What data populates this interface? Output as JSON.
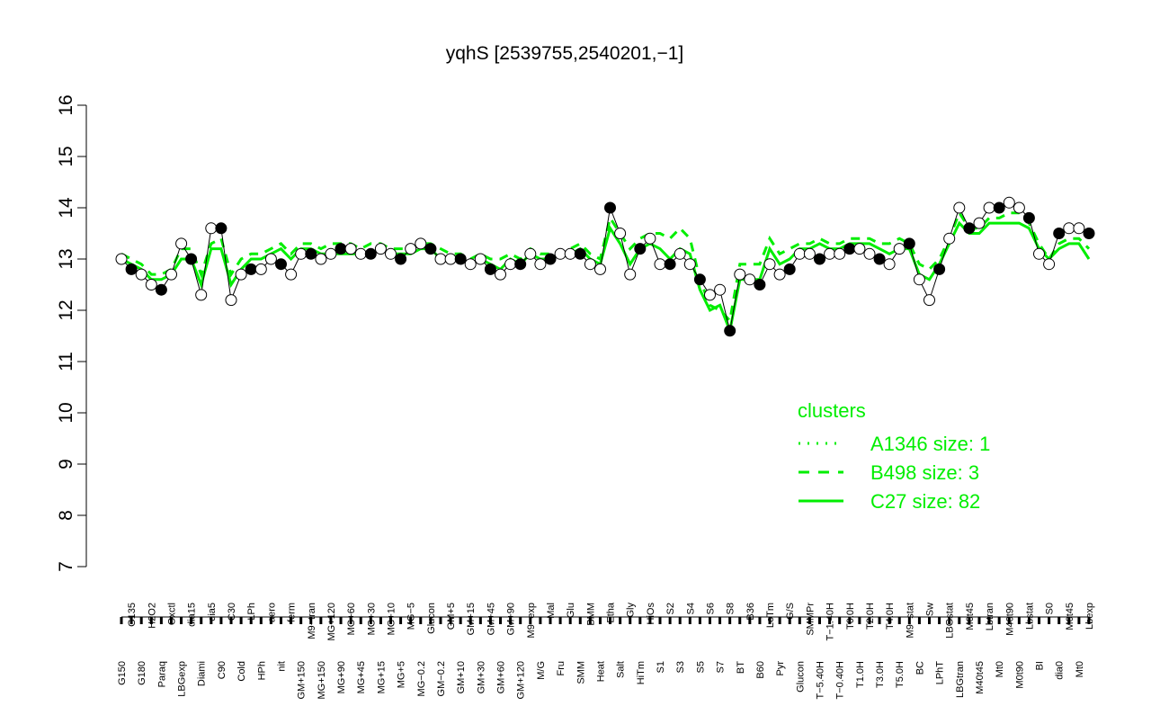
{
  "chart_data": {
    "type": "scatter",
    "title": "yqhS [2539755,2540201,−1]",
    "xlabel": "",
    "ylabel": "",
    "ylim": [
      7,
      16
    ],
    "y_ticks": [
      "7",
      "8",
      "9",
      "10",
      "11",
      "12",
      "13",
      "14",
      "15",
      "16"
    ],
    "grid": false,
    "x_tick_labels": [
      "G150",
      "G135",
      "G180",
      "H2O2",
      "Paraq",
      "Oxctl",
      "LBGexp",
      "dia15",
      "Diami",
      "dia5",
      "C90",
      "C30",
      "Cold",
      "LPh",
      "HPh",
      "aero",
      "nit",
      "ferm",
      "GM+150",
      "M9−tran",
      "MG+150",
      "MG+120",
      "MG+90",
      "MG+60",
      "MG+45",
      "MG+30",
      "MG+15",
      "MG+10",
      "MG+5",
      "MG−5",
      "MG−0.2",
      "Glucon",
      "GM−0.2",
      "GM+5",
      "GM+10",
      "GM+15",
      "GM+30",
      "GM+45",
      "GM+60",
      "GM+90",
      "GM+120",
      "M9−exp",
      "M/G",
      "Mal",
      "Fru",
      "Glu",
      "SMM",
      "BMM",
      "Heat",
      "Etha",
      "Salt",
      "Gly",
      "HiTm",
      "HiOs",
      "S1",
      "S2",
      "S3",
      "S4",
      "S5",
      "S6",
      "S7",
      "S8",
      "BT",
      "B36",
      "B60",
      "LoTm",
      "Pyr",
      "G/S",
      "Glucon",
      "SMMPr",
      "T−5.40H",
      "T−1.40H",
      "T−0.40H",
      "T0.0H",
      "T1.0H",
      "T2.0H",
      "T3.0H",
      "T4.0H",
      "T5.0H",
      "M9−stat",
      "BC",
      "Sw",
      "LPhT",
      "LBGstat",
      "LBGtran",
      "M0t45",
      "M40t45",
      "Lbtran",
      "Mt0",
      "M40t90",
      "M0t90",
      "Lbstat",
      "BI",
      "S0",
      "dia0",
      "M0t45",
      "Mt0",
      "Lbexp"
    ],
    "series": [
      {
        "name": "",
        "marker": "circle",
        "x": [
          1,
          2,
          3,
          4,
          5,
          6,
          7,
          8,
          9,
          10,
          11,
          12,
          13,
          14,
          15,
          16,
          17,
          18,
          19,
          20,
          21,
          22,
          23,
          24,
          25,
          26,
          27,
          28,
          29,
          30,
          31,
          32,
          33,
          34,
          35,
          36,
          37,
          38,
          39,
          40,
          41,
          42,
          43,
          44,
          45,
          46,
          47,
          48,
          49,
          50,
          51,
          52,
          53,
          54,
          55,
          56,
          57,
          58,
          59,
          60,
          61,
          62,
          63,
          64,
          65,
          66,
          67,
          68,
          69,
          70,
          71,
          72,
          73,
          74,
          75,
          76,
          77,
          78,
          79,
          80,
          81,
          82,
          83,
          84,
          85,
          86,
          87,
          88,
          89,
          90,
          91,
          92,
          93,
          94,
          95,
          96,
          97,
          98
        ],
        "y": [
          13.0,
          12.8,
          12.7,
          12.5,
          12.4,
          12.7,
          13.3,
          13.0,
          12.3,
          13.6,
          13.6,
          12.2,
          12.7,
          12.8,
          12.8,
          13.0,
          12.9,
          12.7,
          13.1,
          13.1,
          13.0,
          13.1,
          13.2,
          13.2,
          13.1,
          13.1,
          13.2,
          13.1,
          13.0,
          13.2,
          13.3,
          13.2,
          13.0,
          13.0,
          13.0,
          12.9,
          13.0,
          12.8,
          12.7,
          12.9,
          12.9,
          13.1,
          12.9,
          13.0,
          13.1,
          13.1,
          13.1,
          12.9,
          12.8,
          14.0,
          13.5,
          12.7,
          13.2,
          13.4,
          12.9,
          12.9,
          13.1,
          12.9,
          12.6,
          12.3,
          12.4,
          11.6,
          12.7,
          12.6,
          12.5,
          12.9,
          12.7,
          12.8,
          13.1,
          13.1,
          13.0,
          13.1,
          13.1,
          13.2,
          13.2,
          13.1,
          13.0,
          12.9,
          13.2,
          13.3,
          12.6,
          12.2,
          12.8,
          13.4,
          14.0,
          13.6,
          13.7,
          14.0,
          14.0,
          14.1,
          14.0,
          13.8,
          13.1,
          12.9,
          13.5,
          13.6,
          13.6,
          13.5
        ]
      },
      {
        "name": "A1346 size: 1",
        "line_style": "dotted",
        "color": "#00ee00",
        "x": [],
        "y": []
      },
      {
        "name": "B498 size: 3",
        "line_style": "dashed",
        "color": "#00ee00",
        "x": [
          1,
          2,
          3,
          4,
          5,
          6,
          7,
          8,
          9,
          10,
          11,
          12,
          13,
          14,
          15,
          16,
          17,
          18,
          19,
          20,
          21,
          22,
          23,
          24,
          25,
          26,
          27,
          28,
          29,
          30,
          31,
          32,
          33,
          34,
          35,
          36,
          37,
          38,
          39,
          40,
          41,
          42,
          43,
          44,
          45,
          46,
          47,
          48,
          49,
          50,
          51,
          52,
          53,
          54,
          55,
          56,
          57,
          58,
          59,
          60,
          61,
          62,
          63,
          64,
          65,
          66,
          67,
          68,
          69,
          70,
          71,
          72,
          73,
          74,
          75,
          76,
          77,
          78,
          79,
          80,
          81,
          82,
          83,
          84,
          85,
          86,
          87,
          88,
          89,
          90,
          91,
          92,
          93,
          94,
          95,
          96,
          97,
          98
        ],
        "y": [
          13.1,
          13.0,
          12.9,
          12.7,
          12.7,
          12.8,
          13.2,
          13.2,
          12.7,
          13.3,
          13.4,
          12.7,
          13.0,
          13.1,
          13.1,
          13.2,
          13.3,
          13.1,
          13.3,
          13.3,
          13.2,
          13.3,
          13.3,
          13.3,
          13.2,
          13.3,
          13.3,
          13.2,
          13.2,
          13.2,
          13.3,
          13.3,
          13.2,
          13.1,
          13.1,
          13.0,
          13.1,
          13.0,
          13.0,
          13.1,
          13.0,
          13.2,
          13.1,
          13.1,
          13.1,
          13.2,
          13.3,
          13.1,
          13.0,
          13.8,
          13.5,
          13.2,
          13.4,
          13.5,
          13.5,
          13.4,
          13.6,
          13.4,
          12.6,
          12.1,
          12.0,
          11.8,
          12.9,
          12.9,
          12.9,
          13.4,
          13.1,
          13.2,
          13.3,
          13.3,
          13.4,
          13.3,
          13.3,
          13.4,
          13.4,
          13.4,
          13.3,
          13.3,
          13.4,
          13.3,
          12.9,
          12.8,
          13.0,
          13.4,
          13.9,
          13.6,
          13.6,
          13.8,
          13.8,
          13.9,
          13.9,
          13.7,
          13.3,
          13.0,
          13.3,
          13.4,
          13.4,
          13.2
        ]
      },
      {
        "name": "C27 size: 82",
        "line_style": "solid",
        "color": "#00ee00",
        "x": [
          1,
          2,
          3,
          4,
          5,
          6,
          7,
          8,
          9,
          10,
          11,
          12,
          13,
          14,
          15,
          16,
          17,
          18,
          19,
          20,
          21,
          22,
          23,
          24,
          25,
          26,
          27,
          28,
          29,
          30,
          31,
          32,
          33,
          34,
          35,
          36,
          37,
          38,
          39,
          40,
          41,
          42,
          43,
          44,
          45,
          46,
          47,
          48,
          49,
          50,
          51,
          52,
          53,
          54,
          55,
          56,
          57,
          58,
          59,
          60,
          61,
          62,
          63,
          64,
          65,
          66,
          67,
          68,
          69,
          70,
          71,
          72,
          73,
          74,
          75,
          76,
          77,
          78,
          79,
          80,
          81,
          82,
          83,
          84,
          85,
          86,
          87,
          88,
          89,
          90,
          91,
          92,
          93,
          94,
          95,
          96,
          97,
          98
        ],
        "y": [
          13.0,
          12.9,
          12.8,
          12.6,
          12.6,
          12.7,
          13.0,
          13.0,
          12.5,
          13.2,
          13.2,
          12.5,
          12.8,
          13.0,
          13.0,
          13.1,
          13.2,
          13.0,
          13.2,
          13.2,
          13.1,
          13.1,
          13.1,
          13.1,
          13.1,
          13.1,
          13.2,
          13.1,
          13.1,
          13.1,
          13.2,
          13.2,
          13.0,
          13.0,
          13.0,
          12.9,
          13.0,
          12.9,
          12.8,
          13.0,
          12.9,
          13.1,
          13.0,
          13.0,
          13.1,
          13.1,
          13.2,
          13.0,
          12.9,
          13.6,
          13.3,
          12.9,
          13.2,
          13.3,
          13.2,
          13.0,
          13.2,
          13.1,
          12.4,
          12.0,
          12.1,
          11.6,
          12.6,
          12.6,
          12.6,
          13.2,
          12.9,
          13.0,
          13.2,
          13.2,
          13.3,
          13.2,
          13.2,
          13.3,
          13.3,
          13.3,
          13.2,
          13.1,
          13.2,
          13.2,
          12.7,
          12.6,
          12.9,
          13.3,
          13.7,
          13.5,
          13.5,
          13.7,
          13.7,
          13.7,
          13.7,
          13.6,
          13.2,
          13.0,
          13.2,
          13.3,
          13.3,
          13.0
        ]
      }
    ],
    "legend": {
      "title": "clusters",
      "placement": "right",
      "entries": [
        "A1346 size: 1",
        "B498 size: 3",
        "C27 size: 82"
      ]
    }
  }
}
